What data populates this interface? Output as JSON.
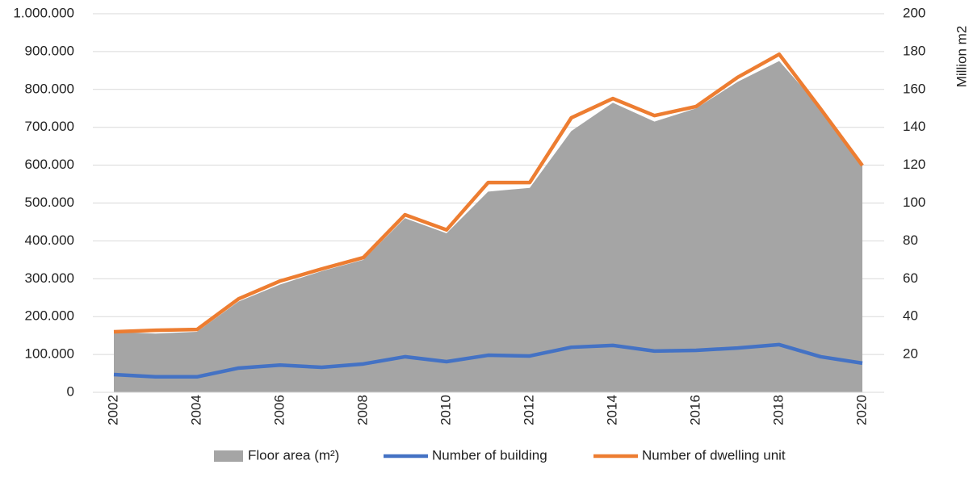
{
  "chart_data": {
    "type": "line",
    "categories": [
      "2002",
      null,
      "2004",
      null,
      "2006",
      null,
      "2008",
      null,
      "2010",
      null,
      "2012",
      null,
      "2014",
      null,
      "2016",
      null,
      "2018",
      null,
      "2020"
    ],
    "series": [
      {
        "name": "Floor area (m²)",
        "type": "area",
        "axis": "y2",
        "color": "#a5a5a5",
        "values": [
          32,
          31,
          32,
          48,
          57,
          64,
          70,
          92,
          84,
          106,
          108,
          138,
          153,
          143,
          150,
          164,
          175,
          150,
          120
        ]
      },
      {
        "name": "Number of building",
        "type": "line",
        "color": "#4472c4",
        "values": [
          47000,
          41000,
          41000,
          64000,
          72000,
          66000,
          75000,
          94000,
          81000,
          98000,
          96000,
          119000,
          124000,
          109000,
          111000,
          117000,
          126000,
          94000,
          77000
        ]
      },
      {
        "name": "Number of dwelling unit",
        "type": "line",
        "color": "#ed7d31",
        "values": [
          160000,
          164000,
          166000,
          247000,
          294000,
          326000,
          356000,
          469000,
          429000,
          554000,
          554000,
          725000,
          776000,
          731000,
          755000,
          832000,
          893000,
          748000,
          599000
        ]
      }
    ],
    "ylim": [
      0,
      1000000
    ],
    "yticks": [
      0,
      {
        "value": 100000,
        "label": "100.000"
      },
      {
        "value": 200000,
        "label": "200.000"
      },
      {
        "value": 300000,
        "label": "300.000"
      },
      {
        "value": 400000,
        "label": "400.000"
      },
      {
        "value": 500000,
        "label": "500.000"
      },
      {
        "value": 600000,
        "label": "600.000"
      },
      {
        "value": 700000,
        "label": "700.000"
      },
      {
        "value": 800000,
        "label": "800.000"
      },
      {
        "value": 900000,
        "label": "900.000"
      },
      {
        "value": 1000000,
        "label": "1.000.000"
      }
    ],
    "y2lim": [
      0,
      200
    ],
    "y2ticks": [
      20,
      40,
      60,
      80,
      100,
      120,
      140,
      160,
      180,
      200
    ],
    "y2label": "Million m2",
    "grid": true,
    "legend": "bottom"
  }
}
